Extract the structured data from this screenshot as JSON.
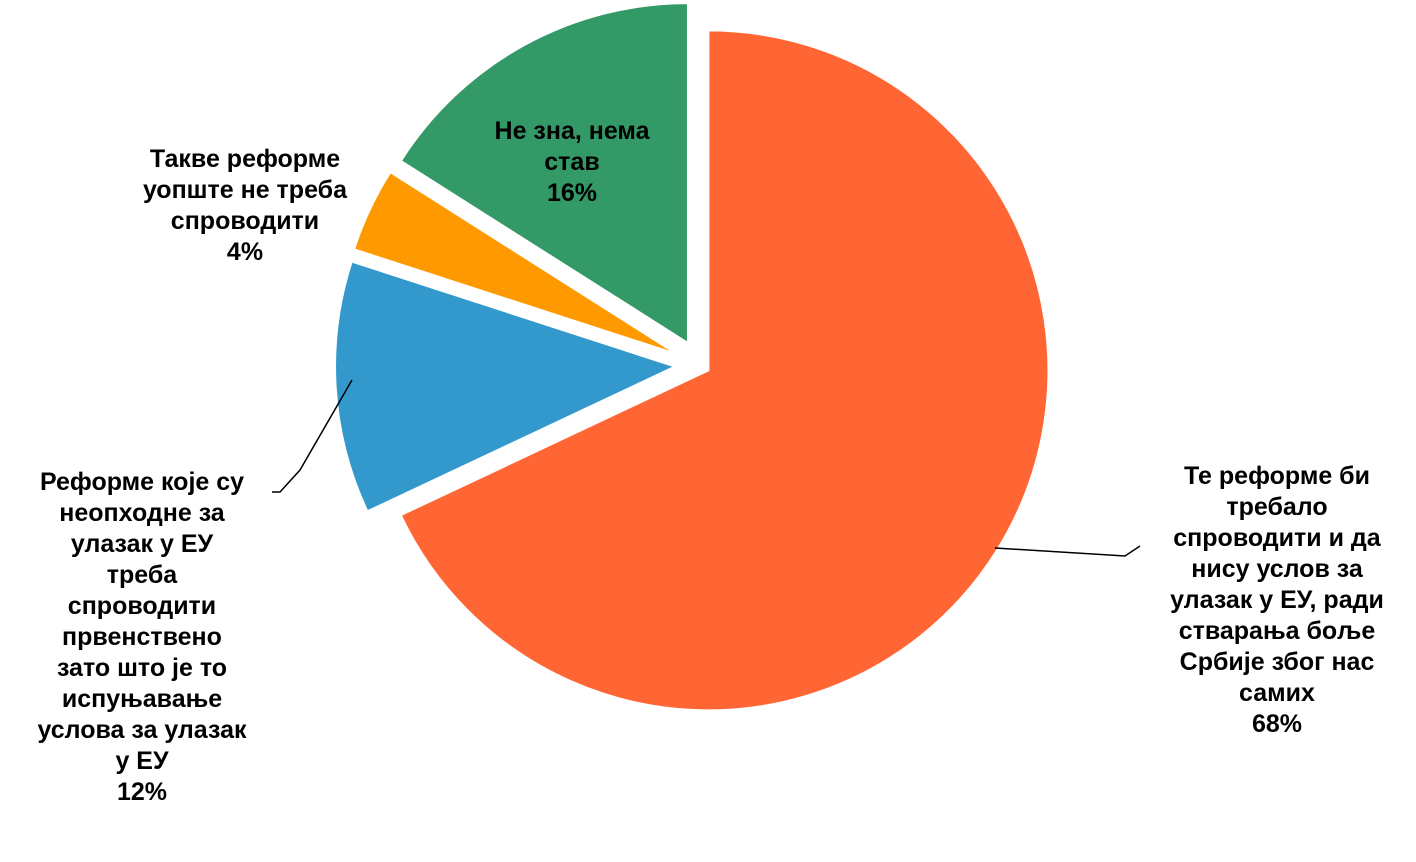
{
  "chart_data": {
    "type": "pie",
    "start_angle_deg": 0,
    "direction": "clockwise",
    "slices": [
      {
        "key": "a",
        "label_lines": [
          "Те реформе би",
          "требало",
          "спроводити и да",
          "нису услов за",
          "улазак у ЕУ, ради",
          "стварања боље",
          "Србије због нас",
          "самих"
        ],
        "value_text": "68%",
        "value": 68,
        "color": "#FF6633"
      },
      {
        "key": "b",
        "label_lines": [
          "Реформе које су",
          "неопходне за",
          "улазак у ЕУ",
          "треба",
          "спроводити",
          "првенствено",
          "зато што је то",
          "испуњавање",
          "услова за улазак",
          "у ЕУ"
        ],
        "value_text": "12%",
        "value": 12,
        "color": "#3399CC"
      },
      {
        "key": "c",
        "label_lines": [
          "Такве реформе",
          "уопште не треба",
          "спроводити"
        ],
        "value_text": "4%",
        "value": 4,
        "color": "#FF9900"
      },
      {
        "key": "d",
        "label_lines": [
          "Не зна, нема",
          "став"
        ],
        "value_text": "16%",
        "value": 16,
        "color": "#339966"
      }
    ]
  }
}
